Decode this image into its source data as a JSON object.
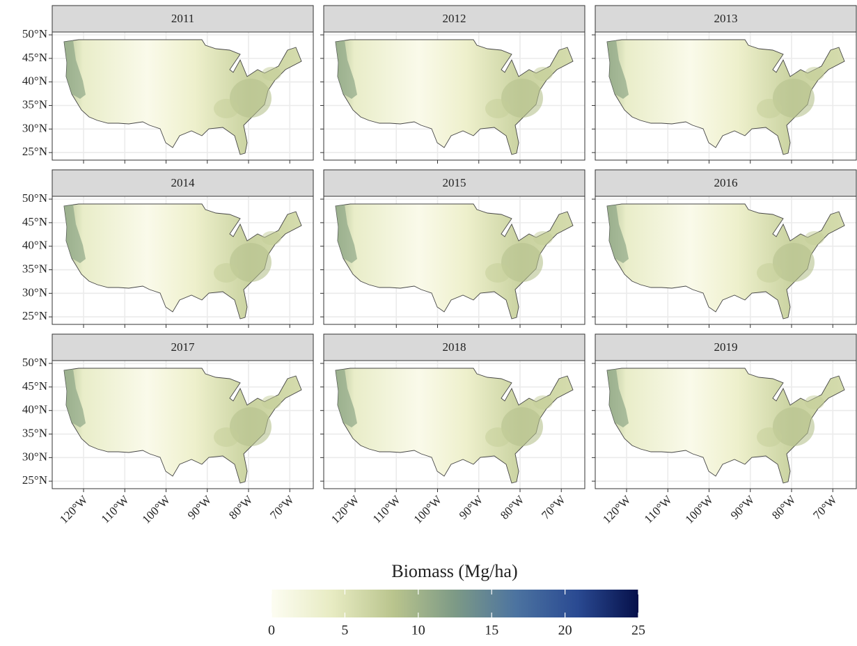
{
  "chart_data": {
    "type": "map",
    "facets": [
      "2011",
      "2012",
      "2013",
      "2014",
      "2015",
      "2016",
      "2017",
      "2018",
      "2019"
    ],
    "xlim": [
      -127.6,
      -64.3
    ],
    "ylim": [
      23.4,
      50.6
    ],
    "xticks": [
      {
        "value": -120,
        "label": "120°W"
      },
      {
        "value": -110,
        "label": "110°W"
      },
      {
        "value": -100,
        "label": "100°W"
      },
      {
        "value": -90,
        "label": "90°W"
      },
      {
        "value": -80,
        "label": "80°W"
      },
      {
        "value": -70,
        "label": "70°W"
      }
    ],
    "yticks": [
      {
        "value": 25,
        "label": "25°N"
      },
      {
        "value": 30,
        "label": "30°N"
      },
      {
        "value": 35,
        "label": "35°N"
      },
      {
        "value": 40,
        "label": "40°N"
      },
      {
        "value": 45,
        "label": "45°N"
      },
      {
        "value": 50,
        "label": "50°N"
      }
    ],
    "grid": true,
    "colorbar": {
      "title": "Biomass (Mg/ha)",
      "lim": [
        0,
        25
      ],
      "ticks": [
        0,
        5,
        10,
        15,
        20,
        25
      ],
      "colors": [
        "#fdfdf2",
        "#e7ebc2",
        "#b9c48d",
        "#7d9a86",
        "#4c73a0",
        "#2a4a92",
        "#06104a"
      ]
    }
  }
}
